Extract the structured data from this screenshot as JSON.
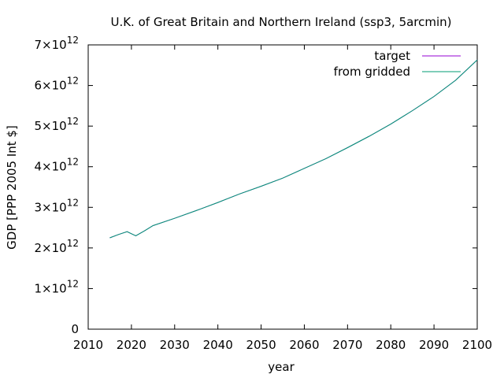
{
  "chart_data": {
    "type": "line",
    "title": "U.K. of Great Britain and Northern Ireland (ssp3, 5arcmin)",
    "xlabel": "year",
    "ylabel": "GDP [PPP 2005 Int $]",
    "xlim": [
      2010,
      2100
    ],
    "ylim": [
      0,
      7000000000000.0
    ],
    "x_ticks": [
      2010,
      2020,
      2030,
      2040,
      2050,
      2060,
      2070,
      2080,
      2090,
      2100
    ],
    "x_tick_labels": [
      "2010",
      "2020",
      "2030",
      "2040",
      "2050",
      "2060",
      "2070",
      "2080",
      "2090",
      "2100"
    ],
    "y_ticks": [
      {
        "value": 0,
        "mantissa": "0",
        "exponent": ""
      },
      {
        "value": 1000000000000.0,
        "mantissa": "1×10",
        "exponent": "12"
      },
      {
        "value": 2000000000000.0,
        "mantissa": "2×10",
        "exponent": "12"
      },
      {
        "value": 3000000000000.0,
        "mantissa": "3×10",
        "exponent": "12"
      },
      {
        "value": 4000000000000.0,
        "mantissa": "4×10",
        "exponent": "12"
      },
      {
        "value": 5000000000000.0,
        "mantissa": "5×10",
        "exponent": "12"
      },
      {
        "value": 6000000000000.0,
        "mantissa": "6×10",
        "exponent": "12"
      },
      {
        "value": 7000000000000.0,
        "mantissa": "7×10",
        "exponent": "12"
      }
    ],
    "grid": false,
    "legend_position": "top-right",
    "series": [
      {
        "name": "target",
        "color": "#9400d3",
        "x": [
          2015,
          2017,
          2019,
          2021,
          2023,
          2025,
          2030,
          2035,
          2040,
          2045,
          2050,
          2055,
          2060,
          2065,
          2070,
          2075,
          2080,
          2085,
          2090,
          2095,
          2100
        ],
        "y": [
          2250000000000.0,
          2330000000000.0,
          2400000000000.0,
          2300000000000.0,
          2420000000000.0,
          2550000000000.0,
          2730000000000.0,
          2920000000000.0,
          3120000000000.0,
          3330000000000.0,
          3520000000000.0,
          3720000000000.0,
          3960000000000.0,
          4200000000000.0,
          4470000000000.0,
          4750000000000.0,
          5050000000000.0,
          5380000000000.0,
          5730000000000.0,
          6130000000000.0,
          6630000000000.0
        ]
      },
      {
        "name": "from gridded",
        "color": "#009e73",
        "x": [
          2015,
          2017,
          2019,
          2021,
          2023,
          2025,
          2030,
          2035,
          2040,
          2045,
          2050,
          2055,
          2060,
          2065,
          2070,
          2075,
          2080,
          2085,
          2090,
          2095,
          2100
        ],
        "y": [
          2250000000000.0,
          2330000000000.0,
          2400000000000.0,
          2300000000000.0,
          2420000000000.0,
          2550000000000.0,
          2730000000000.0,
          2920000000000.0,
          3120000000000.0,
          3330000000000.0,
          3520000000000.0,
          3720000000000.0,
          3960000000000.0,
          4200000000000.0,
          4470000000000.0,
          4750000000000.0,
          5050000000000.0,
          5380000000000.0,
          5730000000000.0,
          6130000000000.0,
          6630000000000.0
        ]
      }
    ]
  }
}
